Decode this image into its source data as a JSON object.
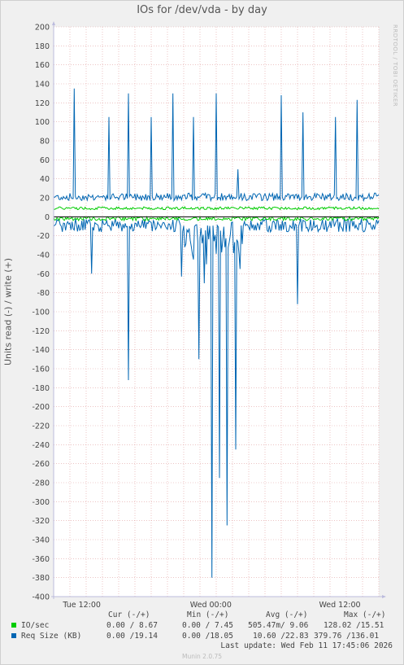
{
  "chart_data": {
    "type": "line",
    "title": "IOs for /dev/vda - by day",
    "ylabel": "Units read (-) / write (+)",
    "ylim": [
      -400,
      200
    ],
    "yticks": [
      "200",
      "180",
      "160",
      "140",
      "120",
      "100",
      "80",
      "60",
      "40",
      "20",
      "0",
      "-20",
      "-40",
      "-60",
      "-80",
      "-100",
      "-120",
      "-140",
      "-160",
      "-180",
      "-200",
      "-220",
      "-240",
      "-260",
      "-280",
      "-300",
      "-320",
      "-340",
      "-360",
      "-380",
      "-400"
    ],
    "xticks": [
      "Tue 12:00",
      "Wed 00:00",
      "Wed 12:00"
    ],
    "colors": {
      "io": "#00cc00",
      "reqsize": "#0066b3",
      "grid": "#e0a0a0",
      "bg": "#ffffff"
    },
    "series": [
      {
        "name": "IO/sec",
        "color": "#00cc00",
        "write_avg": 9.06,
        "read_avg": 0.505,
        "write_max": 15.51,
        "read_max": 128.02
      },
      {
        "name": "Req Size (KB)",
        "color": "#0066b3",
        "write_baseline": 21,
        "write_spikes_hours": [
          1.9,
          5.1,
          6.9,
          9.0,
          11.0,
          12.9,
          15.0,
          17.0,
          21.0,
          23.0,
          26.0,
          28.0
        ],
        "write_spike_values": [
          135,
          105,
          130,
          105,
          130,
          105,
          130,
          50,
          128,
          110,
          105,
          123
        ],
        "read_spikes_hours": [
          3.5,
          6.9,
          11.8,
          12.9,
          13.4,
          13.9,
          14.1,
          14.6,
          15.3,
          16.0,
          16.8,
          17.2,
          22.5
        ],
        "read_spike_values": [
          -60,
          -172,
          -63,
          -45,
          -150,
          -70,
          -50,
          -380,
          -275,
          -325,
          -245,
          -55,
          -92
        ]
      }
    ],
    "legend": {
      "headers": [
        "Cur (-/+)",
        "Min (-/+)",
        "Avg (-/+)",
        "Max (-/+)"
      ],
      "rows": [
        {
          "label": "IO/sec",
          "cur": "0.00 / 8.67",
          "min": "0.00 / 7.45",
          "avg": "505.47m/ 9.06",
          "max": "128.02 /15.51"
        },
        {
          "label": "Req Size (KB)",
          "cur": "0.00 /19.14",
          "min": "0.00 /18.05",
          "avg": "10.60 /22.83",
          "max": "379.76 /136.01"
        }
      ]
    }
  },
  "watermark": "RRDTOOL / TOBI OETIKER",
  "last_update": "Last update: Wed Feb 11 17:45:06 2026",
  "munin_version": "Munin 2.0.75"
}
